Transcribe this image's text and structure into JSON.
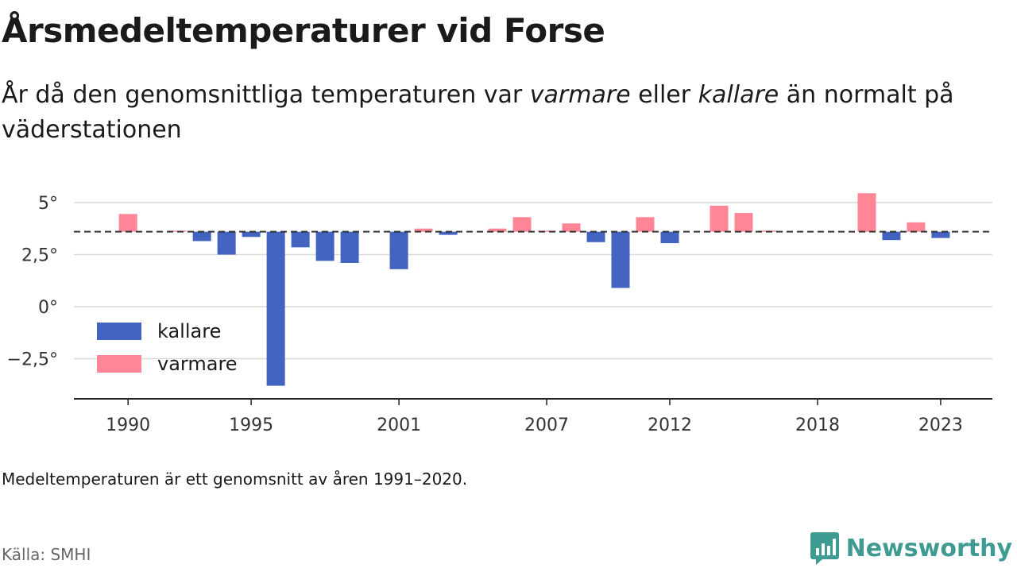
{
  "header": {
    "title": "Årsmedeltemperaturer vid Forse",
    "subtitle_part1": "År då den genomsnittliga temperaturen var ",
    "subtitle_em1": "varmare",
    "subtitle_part2": " eller ",
    "subtitle_em2": "kallare",
    "subtitle_part3": " än normalt på väderstationen"
  },
  "footer": {
    "note": "Medeltemperaturen är ett genomsnitt av åren 1991–2020.",
    "source": "Källa: SMHI",
    "logo": "Newsworthy"
  },
  "colors": {
    "colder": "#4263c0",
    "warmer": "#ff8597",
    "normal_line": "#333333",
    "grid": "#d9d9d9",
    "brand": "#3f9b91"
  },
  "chart_data": {
    "type": "bar",
    "x": [
      1990,
      1991,
      1992,
      1993,
      1994,
      1995,
      1996,
      1997,
      1998,
      1999,
      2000,
      2001,
      2002,
      2003,
      2004,
      2005,
      2006,
      2007,
      2008,
      2009,
      2010,
      2011,
      2012,
      2013,
      2014,
      2015,
      2016,
      2017,
      2018,
      2019,
      2020,
      2021,
      2022,
      2023
    ],
    "values": [
      4.45,
      null,
      3.65,
      3.15,
      2.5,
      3.35,
      -3.8,
      2.85,
      2.2,
      2.1,
      null,
      1.8,
      3.75,
      3.45,
      null,
      3.75,
      4.3,
      3.65,
      4.0,
      3.1,
      0.9,
      4.3,
      3.05,
      null,
      4.85,
      4.5,
      3.65,
      null,
      null,
      null,
      5.45,
      3.2,
      4.05,
      3.3
    ],
    "baseline": 3.6,
    "title": "Årsmedeltemperaturer vid Forse",
    "xlabel": "",
    "ylabel": "",
    "ylim": [
      -4.3,
      5.4
    ],
    "y_ticks": [
      5,
      2.5,
      0,
      -2.5
    ],
    "y_tick_labels": [
      "5°",
      "2,5°",
      "0°",
      "−2,5°"
    ],
    "x_ticks": [
      1990,
      1995,
      2001,
      2007,
      2012,
      2018,
      2023
    ],
    "x_tick_labels": [
      "1990",
      "1995",
      "2001",
      "2007",
      "2012",
      "2018",
      "2023"
    ],
    "legend": [
      {
        "label": "kallare",
        "key": "colder"
      },
      {
        "label": "varmare",
        "key": "warmer"
      }
    ],
    "legend_position": "bottom-left",
    "grid": true
  }
}
